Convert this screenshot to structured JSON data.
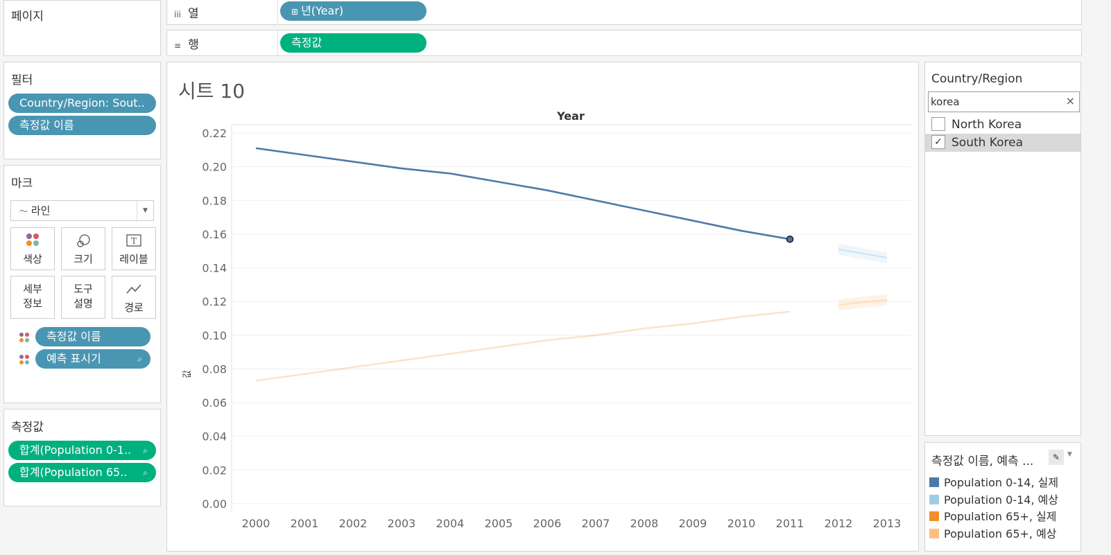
{
  "pages_panel": {
    "title": "페이지"
  },
  "shelves": {
    "columns": {
      "icon": "iii",
      "label": "열",
      "pill": "년(Year)",
      "pill_icon": "⊞"
    },
    "rows": {
      "icon": "≡",
      "label": "행",
      "pill": "측정값"
    }
  },
  "filters_panel": {
    "title": "필터",
    "pills": [
      "Country/Region: Sout..",
      "측정값 이름"
    ]
  },
  "marks_panel": {
    "title": "마크",
    "mark_type": "라인",
    "mark_type_icon": "line-icon",
    "buttons": {
      "color": "색상",
      "size": "크기",
      "label": "레이블",
      "detail_line1": "세부",
      "detail_line2": "정보",
      "tooltip_line1": "도구",
      "tooltip_line2": "설명",
      "path": "경로"
    },
    "fields": [
      "측정값 이름",
      "예측 표시기"
    ]
  },
  "measures_panel": {
    "title": "측정값",
    "pills": [
      "합계(Population 0-1..",
      "합계(Population 65.."
    ]
  },
  "sheet": {
    "title": "시트 10",
    "header": "Year",
    "y_axis_label": "값"
  },
  "filter_card": {
    "title": "Country/Region",
    "search_value": "korea",
    "clear": "×",
    "items": [
      {
        "label": "North Korea",
        "checked": false
      },
      {
        "label": "South Korea",
        "checked": true
      }
    ]
  },
  "legend_card": {
    "title": "측정값 이름, 예측 ...",
    "items": [
      {
        "label": "Population 0-14, 실제",
        "color": "#4e79a7"
      },
      {
        "label": "Population 0-14, 예상",
        "color": "#a0cbe8"
      },
      {
        "label": "Population 65+, 실제",
        "color": "#f28e2b"
      },
      {
        "label": "Population 65+, 예상",
        "color": "#ffbe7d"
      }
    ]
  },
  "chart_data": {
    "type": "line",
    "x": [
      2000,
      2001,
      2002,
      2003,
      2004,
      2005,
      2006,
      2007,
      2008,
      2009,
      2010,
      2011,
      2012,
      2013
    ],
    "ylim": [
      0,
      0.22
    ],
    "y_ticks": [
      "0.00",
      "0.02",
      "0.04",
      "0.06",
      "0.08",
      "0.10",
      "0.12",
      "0.14",
      "0.16",
      "0.18",
      "0.20",
      "0.22"
    ],
    "grid": true,
    "series": [
      {
        "name": "Population 0-14, 실제",
        "color": "#4e79a7",
        "x": [
          2000,
          2001,
          2002,
          2003,
          2004,
          2005,
          2006,
          2007,
          2008,
          2009,
          2010,
          2011
        ],
        "values": [
          0.211,
          0.207,
          0.203,
          0.199,
          0.196,
          0.191,
          0.186,
          0.18,
          0.174,
          0.168,
          0.162,
          0.157
        ]
      },
      {
        "name": "Population 0-14, 예상",
        "color": "#a0cbe8",
        "x": [
          2012,
          2013
        ],
        "values": [
          0.151,
          0.146
        ]
      },
      {
        "name": "Population 65+, 실제",
        "color": "#f28e2b",
        "x": [
          2000,
          2001,
          2002,
          2003,
          2004,
          2005,
          2006,
          2007,
          2008,
          2009,
          2010,
          2011
        ],
        "values": [
          0.073,
          0.077,
          0.081,
          0.085,
          0.089,
          0.093,
          0.097,
          0.1,
          0.104,
          0.107,
          0.111,
          0.114
        ]
      },
      {
        "name": "Population 65+, 예상",
        "color": "#ffbe7d",
        "x": [
          2012,
          2013
        ],
        "values": [
          0.118,
          0.121
        ]
      }
    ]
  }
}
